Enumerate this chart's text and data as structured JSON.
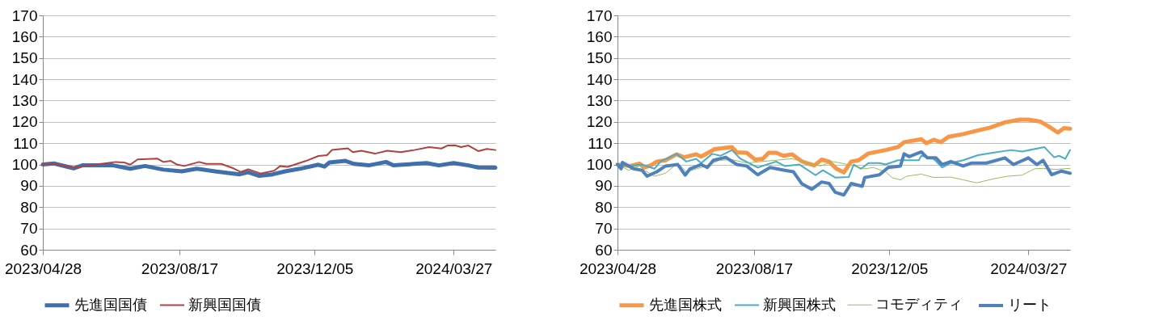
{
  "chart_data": [
    {
      "type": "line",
      "xlim": [
        "2023-04-28",
        "2024-04-30"
      ],
      "xticks": [
        {
          "value": "2023-04-28",
          "label": "2023/04/28"
        },
        {
          "value": "2023-08-17",
          "label": "2023/08/17"
        },
        {
          "value": "2023-12-05",
          "label": "2023/12/05"
        },
        {
          "value": "2024-03-27",
          "label": "2024/03/27"
        }
      ],
      "ylim": [
        60,
        170
      ],
      "yticks": [
        60,
        70,
        80,
        90,
        100,
        110,
        120,
        130,
        140,
        150,
        160,
        170
      ],
      "grid": "y",
      "legend": "bottom",
      "marker": "none",
      "line_style": "solid",
      "series": [
        {
          "name": "先進国国債",
          "color": "#3f6fad",
          "x": [
            "2023-04-28",
            "2023-05-07",
            "2023-05-23",
            "2023-05-30",
            "2023-06-24",
            "2023-07-08",
            "2023-07-20",
            "2023-08-04",
            "2023-08-19",
            "2023-08-31",
            "2023-09-15",
            "2023-10-05",
            "2023-10-12",
            "2023-10-21",
            "2023-11-01",
            "2023-11-11",
            "2023-11-23",
            "2023-12-08",
            "2023-12-13",
            "2023-12-17",
            "2023-12-30",
            "2024-01-06",
            "2024-01-18",
            "2024-02-01",
            "2024-02-07",
            "2024-03-05",
            "2024-03-15",
            "2024-03-27",
            "2024-04-08",
            "2024-04-16",
            "2024-04-30"
          ],
          "values": [
            100,
            100.5,
            98.2,
            99.6,
            99.6,
            98,
            99.3,
            97.6,
            96.8,
            98,
            96.8,
            95.4,
            96.4,
            94.7,
            95.4,
            96.8,
            98,
            99.9,
            99,
            101,
            101.7,
            100.3,
            99.6,
            101.2,
            99.6,
            100.7,
            99.6,
            100.7,
            99.6,
            98.6,
            98.5
          ]
        },
        {
          "name": "新興国国債",
          "color": "#b0413e",
          "x": [
            "2023-04-28",
            "2023-05-07",
            "2023-05-23",
            "2023-06-09",
            "2023-06-26",
            "2023-07-03",
            "2023-07-08",
            "2023-07-14",
            "2023-07-30",
            "2023-08-04",
            "2023-08-10",
            "2023-08-15",
            "2023-08-21",
            "2023-09-02",
            "2023-09-08",
            "2023-09-20",
            "2023-09-30",
            "2023-10-06",
            "2023-10-12",
            "2023-10-22",
            "2023-11-02",
            "2023-11-07",
            "2023-11-13",
            "2023-11-28",
            "2023-12-08",
            "2023-12-15",
            "2023-12-19",
            "2024-01-01",
            "2024-01-05",
            "2024-01-12",
            "2024-01-23",
            "2024-02-02",
            "2024-02-13",
            "2024-02-24",
            "2024-03-07",
            "2024-03-17",
            "2024-03-22",
            "2024-03-28",
            "2024-04-02",
            "2024-04-08",
            "2024-04-16",
            "2024-04-23",
            "2024-04-30"
          ],
          "values": [
            100,
            100.3,
            98.5,
            99.9,
            101.2,
            101,
            99.9,
            102.4,
            102.8,
            101.2,
            101.7,
            100,
            99.3,
            101.2,
            100.3,
            100.3,
            98.2,
            96.5,
            97.8,
            95.8,
            97.1,
            99.3,
            98.9,
            101.7,
            104,
            104.4,
            106.8,
            107.6,
            105.8,
            106.5,
            105.1,
            106.5,
            105.8,
            106.8,
            108.2,
            107.5,
            108.9,
            109,
            108.2,
            108.9,
            106.3,
            107.3,
            106.8
          ]
        }
      ]
    },
    {
      "type": "line",
      "xlim": [
        "2023-04-28",
        "2024-04-30"
      ],
      "xticks": [
        {
          "value": "2023-04-28",
          "label": "2023/04/28"
        },
        {
          "value": "2023-08-17",
          "label": "2023/08/17"
        },
        {
          "value": "2023-12-05",
          "label": "2023/12/05"
        },
        {
          "value": "2024-03-27",
          "label": "2024/03/27"
        }
      ],
      "ylim": [
        60,
        170
      ],
      "yticks": [
        60,
        70,
        80,
        90,
        100,
        110,
        120,
        130,
        140,
        150,
        160,
        170
      ],
      "grid": "y",
      "legend": "bottom",
      "marker": "none",
      "line_style": "solid",
      "series": [
        {
          "name": "先進国株式",
          "color": "#f79646",
          "x": [
            "2023-04-28",
            "2023-05-08",
            "2023-05-16",
            "2023-05-20",
            "2023-05-25",
            "2023-05-30",
            "2023-06-06",
            "2023-06-15",
            "2023-06-21",
            "2023-07-01",
            "2023-07-05",
            "2023-07-16",
            "2023-07-30",
            "2023-08-03",
            "2023-08-11",
            "2023-08-18",
            "2023-08-24",
            "2023-08-29",
            "2023-09-04",
            "2023-09-10",
            "2023-09-17",
            "2023-09-25",
            "2023-10-05",
            "2023-10-11",
            "2023-10-17",
            "2023-10-23",
            "2023-10-29",
            "2023-11-04",
            "2023-11-10",
            "2023-11-18",
            "2023-12-02",
            "2023-12-12",
            "2023-12-17",
            "2023-12-31",
            "2024-01-04",
            "2024-01-10",
            "2024-01-16",
            "2024-01-22",
            "2024-02-03",
            "2024-02-13",
            "2024-02-25",
            "2024-03-08",
            "2024-03-20",
            "2024-03-27",
            "2024-04-06",
            "2024-04-13",
            "2024-04-20",
            "2024-04-25",
            "2024-04-30"
          ],
          "values": [
            100,
            99.3,
            100.4,
            98.6,
            99.6,
            101.4,
            102,
            104.8,
            103.4,
            104.8,
            103.7,
            107.2,
            108.2,
            105.7,
            105.5,
            102.3,
            102.7,
            105.5,
            105.5,
            104.1,
            104.8,
            101.4,
            99.6,
            102.3,
            101.4,
            98,
            96.3,
            101.4,
            102,
            105.2,
            106.8,
            108.2,
            110.5,
            111.9,
            110,
            111.6,
            110.5,
            113,
            114.3,
            115.7,
            117.3,
            119.8,
            121.1,
            121.1,
            120.1,
            117.7,
            115,
            117.1,
            116.8
          ]
        },
        {
          "name": "新興国株式",
          "color": "#4bacc6",
          "x": [
            "2023-04-28",
            "2023-05-08",
            "2023-05-18",
            "2023-05-28",
            "2023-06-02",
            "2023-06-15",
            "2023-06-23",
            "2023-07-01",
            "2023-07-05",
            "2023-07-14",
            "2023-07-21",
            "2023-07-30",
            "2023-08-06",
            "2023-08-20",
            "2023-09-04",
            "2023-09-11",
            "2023-09-23",
            "2023-10-06",
            "2023-10-12",
            "2023-10-22",
            "2023-11-02",
            "2023-11-06",
            "2023-11-12",
            "2023-11-18",
            "2023-11-27",
            "2023-12-02",
            "2023-12-12",
            "2023-12-29",
            "2023-12-31",
            "2024-01-10",
            "2024-01-17",
            "2024-01-24",
            "2024-02-03",
            "2024-02-15",
            "2024-02-27",
            "2024-03-13",
            "2024-03-22",
            "2024-04-09",
            "2024-04-17",
            "2024-04-21",
            "2024-04-26",
            "2024-04-30"
          ],
          "values": [
            100,
            99.3,
            100,
            98,
            101.4,
            105,
            101.4,
            102.7,
            100.7,
            105,
            104.1,
            106.8,
            102.7,
            98.6,
            101.4,
            99.3,
            100,
            95,
            97.3,
            93.9,
            94.1,
            100,
            98,
            100.7,
            100.7,
            100,
            102,
            102,
            104.1,
            102.7,
            98.6,
            100.7,
            102,
            104.4,
            105.5,
            106.8,
            106.1,
            108.2,
            103.4,
            104.1,
            102.7,
            106.8
          ]
        },
        {
          "name": "コモディティ",
          "color": "#9bbb59",
          "x": [
            "2023-04-28",
            "2023-05-07",
            "2023-05-16",
            "2023-05-20",
            "2023-05-28",
            "2023-06-06",
            "2023-06-16",
            "2023-06-23",
            "2023-07-05",
            "2023-07-20",
            "2023-07-30",
            "2023-08-11",
            "2023-08-23",
            "2023-09-04",
            "2023-09-17",
            "2023-09-30",
            "2023-10-10",
            "2023-10-20",
            "2023-10-29",
            "2023-11-06",
            "2023-11-15",
            "2023-11-22",
            "2023-12-02",
            "2023-12-07",
            "2023-12-14",
            "2023-12-19",
            "2023-12-31",
            "2024-01-10",
            "2024-01-24",
            "2024-02-03",
            "2024-02-14",
            "2024-02-27",
            "2024-03-10",
            "2024-03-22",
            "2024-04-01",
            "2024-04-08",
            "2024-04-18",
            "2024-04-30"
          ],
          "values": [
            100,
            97.3,
            99.3,
            97.3,
            94.5,
            95.9,
            100.7,
            96.6,
            98.6,
            102,
            102.3,
            100.7,
            101.4,
            102,
            102.7,
            100.7,
            99.3,
            101.4,
            100.4,
            99.3,
            98,
            98.6,
            96.6,
            93.9,
            92.8,
            94.5,
            95.5,
            93.9,
            94.1,
            92.8,
            91.4,
            93.2,
            94.5,
            95,
            98,
            98.2,
            97.7,
            98.2
          ]
        },
        {
          "name": "リート",
          "color": "#4f81bd",
          "x": [
            "2023-04-28",
            "2023-05-01",
            "2023-05-02",
            "2023-05-11",
            "2023-05-18",
            "2023-05-22",
            "2023-05-30",
            "2023-06-06",
            "2023-06-16",
            "2023-06-22",
            "2023-06-26",
            "2023-07-05",
            "2023-07-10",
            "2023-07-15",
            "2023-07-25",
            "2023-08-03",
            "2023-08-11",
            "2023-08-20",
            "2023-08-30",
            "2023-09-11",
            "2023-09-18",
            "2023-09-25",
            "2023-10-03",
            "2023-10-11",
            "2023-10-17",
            "2023-10-22",
            "2023-10-29",
            "2023-11-04",
            "2023-11-13",
            "2023-11-15",
            "2023-11-27",
            "2023-12-04",
            "2023-12-14",
            "2023-12-17",
            "2023-12-21",
            "2023-12-31",
            "2024-01-05",
            "2024-01-12",
            "2024-01-17",
            "2024-01-24",
            "2024-02-03",
            "2024-02-10",
            "2024-02-22",
            "2024-03-08",
            "2024-03-15",
            "2024-03-27",
            "2024-04-03",
            "2024-04-08",
            "2024-04-15",
            "2024-04-23",
            "2024-04-30"
          ],
          "values": [
            100,
            98,
            101,
            98,
            97.3,
            94.5,
            96.6,
            99.3,
            100,
            95,
            98,
            100,
            98.6,
            102,
            103.4,
            100,
            99.3,
            95.2,
            98.6,
            97.3,
            96.6,
            90.9,
            88.4,
            91.8,
            91.1,
            87,
            85.7,
            91.1,
            89.8,
            93.9,
            95.2,
            98.6,
            99.3,
            105,
            103.7,
            105.9,
            103.1,
            103.1,
            100,
            101.4,
            99.3,
            100.7,
            100.7,
            103.1,
            100,
            103.1,
            100,
            102,
            95.2,
            96.9,
            95.9
          ]
        }
      ]
    }
  ]
}
